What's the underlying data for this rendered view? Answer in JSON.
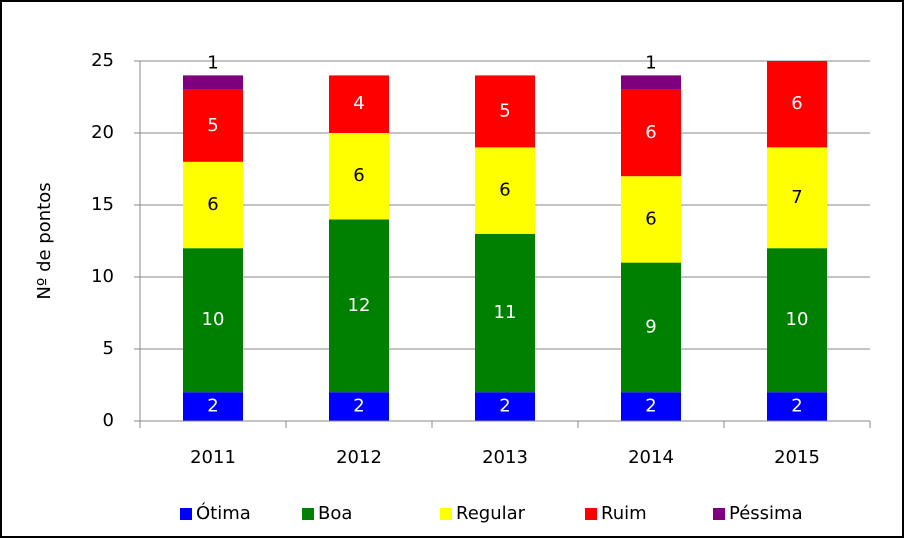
{
  "chart_data": {
    "type": "stacked_bar",
    "y_label": "Nº de pontos",
    "categories": [
      "2011",
      "2012",
      "2013",
      "2014",
      "2015"
    ],
    "series": [
      {
        "name": "Ótima",
        "color": "#0000ff",
        "label_color": "#ffffff",
        "values": [
          2,
          2,
          2,
          2,
          2
        ]
      },
      {
        "name": "Boa",
        "color": "#008000",
        "label_color": "#ffffff",
        "values": [
          10,
          12,
          11,
          9,
          10
        ]
      },
      {
        "name": "Regular",
        "color": "#ffff00",
        "label_color": "#000000",
        "values": [
          6,
          6,
          6,
          6,
          7
        ]
      },
      {
        "name": "Ruim",
        "color": "#ff0000",
        "label_color": "#ffffff",
        "values": [
          5,
          4,
          5,
          6,
          6
        ]
      },
      {
        "name": "Péssima",
        "color": "#7f007f",
        "label_color": "#000000",
        "values": [
          1,
          null,
          null,
          1,
          null
        ]
      }
    ],
    "ylim": [
      0,
      25
    ],
    "yticks": [
      0,
      5,
      10,
      15,
      20,
      25
    ],
    "grid": true,
    "legend": "bottom"
  }
}
